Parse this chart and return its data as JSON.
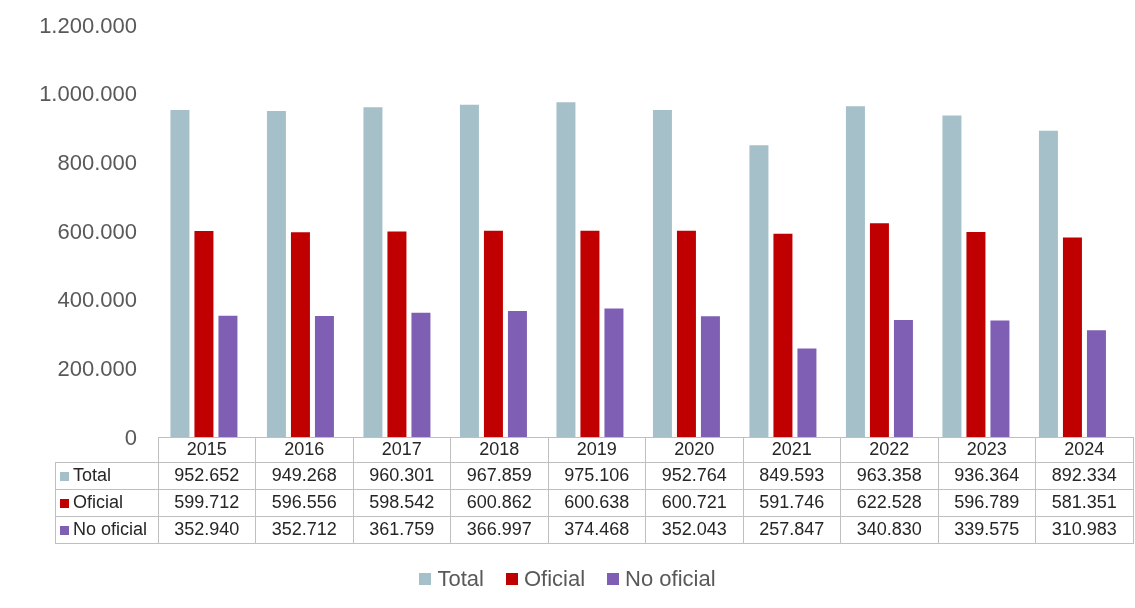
{
  "chart_data": {
    "type": "bar",
    "categories": [
      "2015",
      "2016",
      "2017",
      "2018",
      "2019",
      "2020",
      "2021",
      "2022",
      "2023",
      "2024"
    ],
    "series": [
      {
        "name": "Total",
        "color": "#a5c0c8",
        "values": [
          952652,
          949268,
          960301,
          967859,
          975106,
          952764,
          849593,
          963358,
          936364,
          892334
        ],
        "value_labels": [
          "952.652",
          "949.268",
          "960.301",
          "967.859",
          "975.106",
          "952.764",
          "849.593",
          "963.358",
          "936.364",
          "892.334"
        ]
      },
      {
        "name": "Oficial",
        "color": "#c00000",
        "values": [
          599712,
          596556,
          598542,
          600862,
          600638,
          600721,
          591746,
          622528,
          596789,
          581351
        ],
        "value_labels": [
          "599.712",
          "596.556",
          "598.542",
          "600.862",
          "600.638",
          "600.721",
          "591.746",
          "622.528",
          "596.789",
          "581.351"
        ]
      },
      {
        "name": "No oficial",
        "color": "#7f5fb4",
        "values": [
          352940,
          352712,
          361759,
          366997,
          374468,
          352043,
          257847,
          340830,
          339575,
          310983
        ],
        "value_labels": [
          "352.940",
          "352.712",
          "361.759",
          "366.997",
          "374.468",
          "352.043",
          "257.847",
          "340.830",
          "339.575",
          "310.983"
        ]
      }
    ],
    "ylim": [
      0,
      1200000
    ],
    "yticks": [
      {
        "value": 0,
        "label": "0"
      },
      {
        "value": 200000,
        "label": "200.000"
      },
      {
        "value": 400000,
        "label": "400.000"
      },
      {
        "value": 600000,
        "label": "600.000"
      },
      {
        "value": 800000,
        "label": "800.000"
      },
      {
        "value": 1000000,
        "label": "1.000.000"
      },
      {
        "value": 1200000,
        "label": "1.200.000"
      }
    ],
    "grid": false,
    "legend": "bottom"
  }
}
